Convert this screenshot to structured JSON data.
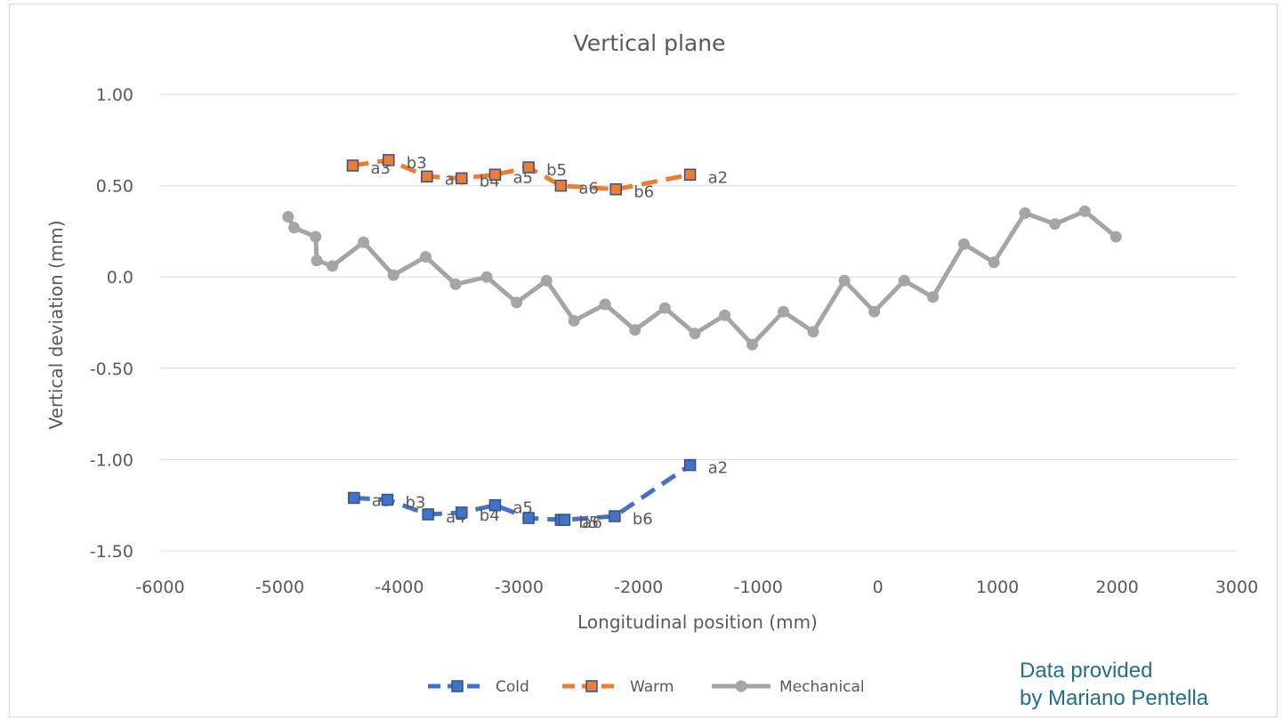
{
  "chart_data": {
    "type": "line",
    "title": "Vertical plane",
    "xlabel": "Longitudinal position (mm)",
    "ylabel": "Vertical deviation (mm)",
    "xlim": [
      -6000,
      3000
    ],
    "ylim": [
      -1.5,
      1.0
    ],
    "xticks": [
      "-6000",
      "-5000",
      "-4000",
      "-3000",
      "-2000",
      "-1000",
      "0",
      "1000",
      "2000",
      "3000"
    ],
    "yticks": [
      "1.00",
      "0.50",
      "0.0",
      "-0.50",
      "-1.00",
      "-1.50"
    ],
    "grid": "horizontal",
    "legend_position": "bottom",
    "series": [
      {
        "name": "Cold",
        "color": "#4472c4",
        "line_style": "dashed",
        "marker": "square",
        "points": [
          {
            "x": -4380,
            "y": -1.21,
            "label": "a3"
          },
          {
            "x": -4100,
            "y": -1.22,
            "label": "b3"
          },
          {
            "x": -3760,
            "y": -1.3,
            "label": "a4"
          },
          {
            "x": -3480,
            "y": -1.29,
            "label": "b4"
          },
          {
            "x": -3200,
            "y": -1.25,
            "label": "a5"
          },
          {
            "x": -2920,
            "y": -1.32,
            "label": ""
          },
          {
            "x": -2650,
            "y": -1.33,
            "label": "b5"
          },
          {
            "x": -2620,
            "y": -1.33,
            "label": "a6"
          },
          {
            "x": -2200,
            "y": -1.31,
            "label": "b6"
          },
          {
            "x": -1570,
            "y": -1.03,
            "label": "a2"
          }
        ]
      },
      {
        "name": "Warm",
        "color": "#ed7d31",
        "line_style": "dashed",
        "marker": "square",
        "points": [
          {
            "x": -4390,
            "y": 0.61,
            "label": "a3"
          },
          {
            "x": -4090,
            "y": 0.64,
            "label": "b3"
          },
          {
            "x": -3770,
            "y": 0.55,
            "label": "a4"
          },
          {
            "x": -3480,
            "y": 0.54,
            "label": "b4"
          },
          {
            "x": -3200,
            "y": 0.56,
            "label": "a5"
          },
          {
            "x": -2920,
            "y": 0.6,
            "label": "b5"
          },
          {
            "x": -2650,
            "y": 0.5,
            "label": "a6"
          },
          {
            "x": -2190,
            "y": 0.48,
            "label": "b6"
          },
          {
            "x": -1570,
            "y": 0.56,
            "label": "a2"
          }
        ]
      },
      {
        "name": "Mechanical",
        "color": "#a5a5a5",
        "line_style": "solid",
        "marker": "circle",
        "points": [
          {
            "x": -4930,
            "y": 0.33
          },
          {
            "x": -4880,
            "y": 0.27
          },
          {
            "x": -4700,
            "y": 0.22
          },
          {
            "x": -4690,
            "y": 0.09
          },
          {
            "x": -4560,
            "y": 0.06
          },
          {
            "x": -4300,
            "y": 0.19
          },
          {
            "x": -4050,
            "y": 0.01
          },
          {
            "x": -3780,
            "y": 0.11
          },
          {
            "x": -3530,
            "y": -0.04
          },
          {
            "x": -3270,
            "y": 0.0
          },
          {
            "x": -3020,
            "y": -0.14
          },
          {
            "x": -2770,
            "y": -0.02
          },
          {
            "x": -2540,
            "y": -0.24
          },
          {
            "x": -2280,
            "y": -0.15
          },
          {
            "x": -2030,
            "y": -0.29
          },
          {
            "x": -1780,
            "y": -0.17
          },
          {
            "x": -1530,
            "y": -0.31
          },
          {
            "x": -1280,
            "y": -0.21
          },
          {
            "x": -1050,
            "y": -0.37
          },
          {
            "x": -790,
            "y": -0.19
          },
          {
            "x": -540,
            "y": -0.3
          },
          {
            "x": -280,
            "y": -0.02
          },
          {
            "x": -30,
            "y": -0.19
          },
          {
            "x": 220,
            "y": -0.02
          },
          {
            "x": 460,
            "y": -0.11
          },
          {
            "x": 720,
            "y": 0.18
          },
          {
            "x": 970,
            "y": 0.08
          },
          {
            "x": 1230,
            "y": 0.35
          },
          {
            "x": 1480,
            "y": 0.29
          },
          {
            "x": 1730,
            "y": 0.36
          },
          {
            "x": 1990,
            "y": 0.22
          }
        ]
      }
    ]
  },
  "credit": {
    "line1": "Data provided",
    "line2": "by Mariano Pentella"
  }
}
